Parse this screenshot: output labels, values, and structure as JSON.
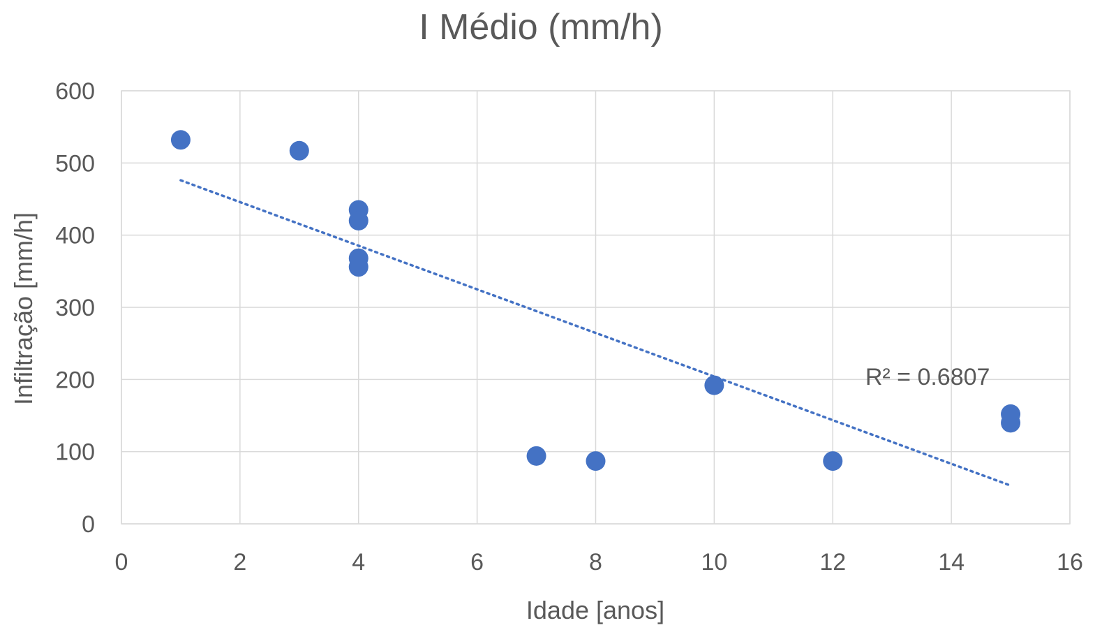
{
  "chart_data": {
    "type": "scatter",
    "title": "I Médio (mm/h)",
    "xlabel": "Idade [anos]",
    "ylabel": "Infiltração [mm/h]",
    "xlim": [
      0,
      16
    ],
    "ylim": [
      0,
      600
    ],
    "xticks": [
      0,
      2,
      4,
      6,
      8,
      10,
      12,
      14,
      16
    ],
    "yticks": [
      0,
      100,
      200,
      300,
      400,
      500,
      600
    ],
    "grid": true,
    "legend": "none",
    "series": [
      {
        "color": "#4472c4",
        "points": [
          {
            "x": 1,
            "y": 532
          },
          {
            "x": 3,
            "y": 517
          },
          {
            "x": 4,
            "y": 435
          },
          {
            "x": 4,
            "y": 420
          },
          {
            "x": 4,
            "y": 368
          },
          {
            "x": 4,
            "y": 356
          },
          {
            "x": 7,
            "y": 94
          },
          {
            "x": 8,
            "y": 87
          },
          {
            "x": 10,
            "y": 192
          },
          {
            "x": 12,
            "y": 87
          },
          {
            "x": 15,
            "y": 152
          },
          {
            "x": 15,
            "y": 140
          }
        ]
      }
    ],
    "trendline": {
      "type": "linear",
      "color": "#4472c4",
      "x_start": 1,
      "y_start": 476,
      "x_end": 15,
      "y_end": 53
    },
    "annotations": [
      {
        "text": "R² = 0.6807",
        "x": 13.6,
        "y": 204
      }
    ]
  }
}
